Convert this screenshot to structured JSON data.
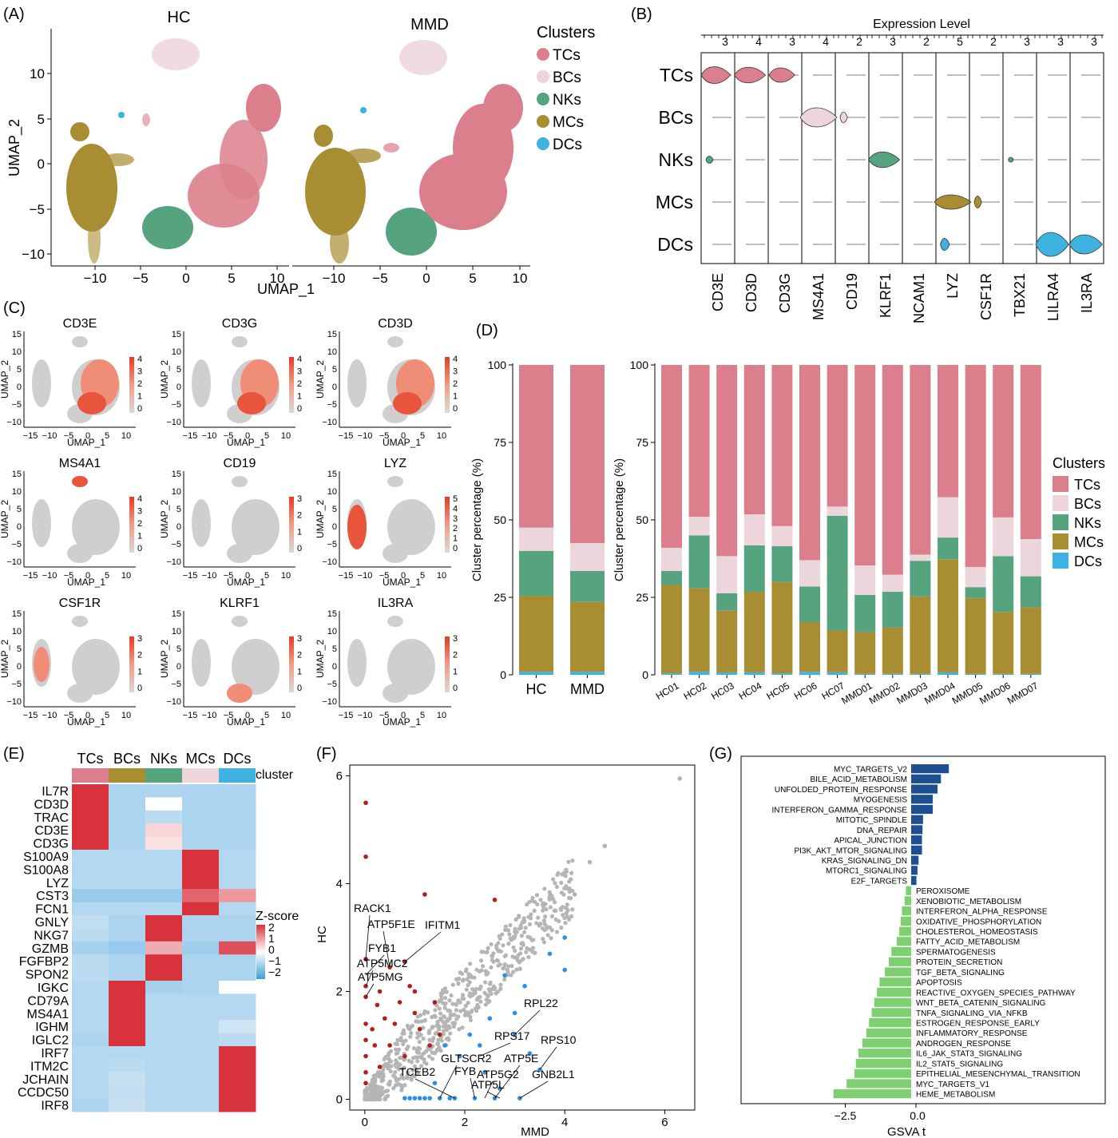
{
  "panel_labels": [
    "(A)",
    "(B)",
    "(C)",
    "(D)",
    "(E)",
    "(F)",
    "(G)"
  ],
  "colors": {
    "TCs": "#dc7f8c",
    "BCs": "#ecd5db",
    "NKs": "#55a37f",
    "MCs": "#a88d33",
    "DCs": "#3fb3e0"
  },
  "panelA": {
    "titles": [
      "HC",
      "MMD"
    ],
    "xlabel": "UMAP_1",
    "ylabel": "UMAP_2",
    "x_ticks": [
      "−10",
      "−5",
      "0",
      "5",
      "10"
    ],
    "y_ticks": [
      "10",
      "5",
      "0",
      "−5",
      "−10"
    ],
    "legend_title": "Clusters",
    "legend": [
      "TCs",
      "BCs",
      "NKs",
      "MCs",
      "DCs"
    ]
  },
  "panelB": {
    "title": "Expression Level",
    "rows": [
      "TCs",
      "BCs",
      "NKs",
      "MCs",
      "DCs"
    ],
    "genes": [
      "CD3E",
      "CD3D",
      "CD3G",
      "MS4A1",
      "CD19",
      "KLRF1",
      "NCAM1",
      "LYZ",
      "CSF1R",
      "TBX21",
      "LILRA4",
      "IL3RA"
    ],
    "top_ticks": [
      "3",
      "4",
      "3",
      "4",
      "2",
      "3",
      "2",
      "5",
      "2",
      "3",
      "3",
      "3"
    ]
  },
  "panelC": {
    "xlabel": "UMAP_1",
    "ylabel": "UMAP_2",
    "x_ticks": [
      "−15",
      "−10",
      "−5",
      "0",
      "5",
      "10"
    ],
    "y_ticks": [
      "15",
      "10",
      "5",
      "0",
      "−5",
      "−10"
    ],
    "maps": [
      {
        "gene": "CD3E",
        "scale": [
          "4",
          "3",
          "2",
          "1",
          "0"
        ]
      },
      {
        "gene": "CD3G",
        "scale": [
          "4",
          "3",
          "2",
          "1",
          "0"
        ]
      },
      {
        "gene": "CD3D",
        "scale": [
          "4",
          "3",
          "2",
          "1",
          "0"
        ]
      },
      {
        "gene": "MS4A1",
        "scale": [
          "4",
          "3",
          "2",
          "1",
          "0"
        ]
      },
      {
        "gene": "CD19",
        "scale": [
          "3",
          "2",
          "1",
          "0"
        ]
      },
      {
        "gene": "LYZ",
        "scale": [
          "5",
          "4",
          "3",
          "2",
          "1",
          "0"
        ]
      },
      {
        "gene": "CSF1R",
        "scale": [
          "3",
          "2",
          "1",
          "0"
        ]
      },
      {
        "gene": "KLRF1",
        "scale": [
          "3",
          "2",
          "1",
          "0"
        ]
      },
      {
        "gene": "IL3RA",
        "scale": [
          "3",
          "2",
          "1",
          "0"
        ]
      }
    ]
  },
  "panelE": {
    "columns": [
      "TCs",
      "BCs",
      "NKs",
      "MCs",
      "DCs"
    ],
    "cluster_label": "cluster",
    "genes": [
      "IL7R",
      "CD3D",
      "TRAC",
      "CD3E",
      "CD3G",
      "S100A9",
      "S100A8",
      "LYZ",
      "CST3",
      "FCN1",
      "GNLY",
      "NKG7",
      "GZMB",
      "FGFBP2",
      "SPON2",
      "IGKC",
      "CD79A",
      "MS4A1",
      "IGHM",
      "IGLC2",
      "IRF7",
      "ITM2C",
      "JCHAIN",
      "CCDC50",
      "IRF8"
    ],
    "z_values": [
      [
        2,
        -0.6,
        -0.6,
        -0.6,
        -0.6
      ],
      [
        2,
        -0.6,
        0.0,
        -0.6,
        -0.6
      ],
      [
        2,
        -0.6,
        -0.4,
        -0.6,
        -0.6
      ],
      [
        2,
        -0.6,
        0.4,
        -0.6,
        -0.6
      ],
      [
        2,
        -0.6,
        0.3,
        -0.6,
        -0.6
      ],
      [
        -0.5,
        -0.5,
        -0.5,
        2,
        -0.5
      ],
      [
        -0.5,
        -0.5,
        -0.5,
        2,
        -0.5
      ],
      [
        -0.5,
        -0.5,
        -0.5,
        2,
        -0.5
      ],
      [
        -0.9,
        -0.9,
        -0.9,
        1.5,
        1.0
      ],
      [
        -0.5,
        -0.5,
        -0.5,
        2,
        -0.5
      ],
      [
        -0.3,
        -0.6,
        2,
        -0.6,
        -0.6
      ],
      [
        -0.4,
        -0.6,
        2,
        -0.6,
        -0.6
      ],
      [
        -0.7,
        -0.9,
        0.8,
        -0.8,
        1.7
      ],
      [
        -0.4,
        -0.6,
        2,
        -0.6,
        -0.6
      ],
      [
        -0.4,
        -0.6,
        2,
        -0.6,
        -0.6
      ],
      [
        -0.5,
        2,
        -0.7,
        -0.6,
        0.0
      ],
      [
        -0.5,
        2,
        -0.5,
        -0.5,
        -0.5
      ],
      [
        -0.5,
        2,
        -0.5,
        -0.5,
        -0.5
      ],
      [
        -0.5,
        2,
        -0.5,
        -0.5,
        -0.1
      ],
      [
        -0.6,
        2,
        -0.5,
        -0.5,
        -0.4
      ],
      [
        -0.5,
        -0.5,
        -0.5,
        -0.5,
        2
      ],
      [
        -0.5,
        -0.4,
        -0.5,
        -0.5,
        2
      ],
      [
        -0.5,
        -0.2,
        -0.5,
        -0.5,
        2
      ],
      [
        -0.5,
        -0.3,
        -0.5,
        -0.5,
        2
      ],
      [
        -0.6,
        -0.2,
        -0.5,
        -0.5,
        2
      ]
    ],
    "legend_title": "Z-score",
    "legend_ticks": [
      "2",
      "1",
      "0",
      "−1",
      "−2"
    ]
  },
  "chart_data": [
    {
      "type": "bar",
      "stacked": true,
      "categories": [
        "HC",
        "MMD"
      ],
      "ylabel": "Cluster percentage (%)",
      "ylim": [
        0,
        100
      ],
      "y_ticks": [
        "0",
        "25",
        "50",
        "75",
        "100"
      ],
      "series": [
        {
          "name": "DCs",
          "values": [
            1,
            1
          ]
        },
        {
          "name": "MCs",
          "values": [
            24.5,
            22.5
          ]
        },
        {
          "name": "NKs",
          "values": [
            14.5,
            10
          ]
        },
        {
          "name": "BCs",
          "values": [
            7.5,
            9
          ]
        },
        {
          "name": "TCs",
          "values": [
            52.5,
            57.5
          ]
        }
      ]
    },
    {
      "type": "bar",
      "stacked": true,
      "categories": [
        "HC01",
        "HC02",
        "HC03",
        "HC04",
        "HC05",
        "HC06",
        "HC07",
        "MMD01",
        "MMD02",
        "MMD03",
        "MMD04",
        "MMD05",
        "MMD06",
        "MMD07"
      ],
      "ylabel": "Cluster percentage (%)",
      "ylim": [
        0,
        100
      ],
      "y_ticks": [
        "0",
        "25",
        "50",
        "75",
        "100"
      ],
      "legend_title": "Clusters",
      "legend": [
        "TCs",
        "BCs",
        "NKs",
        "MCs",
        "DCs"
      ],
      "series": [
        {
          "name": "DCs",
          "values": [
            0.5,
            1,
            0.8,
            0.8,
            0.5,
            1,
            0.8,
            0.3,
            0.3,
            0.3,
            0.8,
            0.3,
            0.3,
            0.3
          ]
        },
        {
          "name": "MCs",
          "values": [
            28.5,
            27,
            20,
            26,
            29.5,
            16,
            13.5,
            13.5,
            15,
            25,
            36.5,
            24.5,
            20,
            21.5
          ]
        },
        {
          "name": "NKs",
          "values": [
            4.5,
            17,
            5.5,
            15,
            11.5,
            11.5,
            37,
            12,
            11.5,
            11.5,
            7,
            3.5,
            18,
            10
          ]
        },
        {
          "name": "BCs",
          "values": [
            7.5,
            6,
            12,
            10,
            6.5,
            8.5,
            3,
            9.5,
            5.5,
            2,
            13,
            6.5,
            12.5,
            12
          ]
        },
        {
          "name": "TCs",
          "values": [
            59,
            49,
            61.7,
            48.2,
            52,
            63,
            45.7,
            64.7,
            67.7,
            61.2,
            42.7,
            65.2,
            49.2,
            56.2
          ]
        }
      ]
    },
    {
      "type": "scatter",
      "xlabel": "MMD",
      "ylabel": "HC",
      "xlim": [
        -0.3,
        6.6
      ],
      "ylim": [
        -0.2,
        6.2
      ],
      "x_ticks": [
        0,
        2,
        4,
        6
      ],
      "y_ticks": [
        0,
        2,
        4,
        6
      ],
      "series": [
        {
          "color": "#b01e1e",
          "points": [
            [
              0.02,
              5.5
            ],
            [
              0.02,
              4.5
            ],
            [
              1.2,
              3.8
            ],
            [
              2.6,
              3.7
            ],
            [
              0.02,
              2.6
            ],
            [
              0.5,
              2.45
            ],
            [
              0.8,
              2.55
            ],
            [
              0.02,
              2.1
            ],
            [
              0.02,
              1.9
            ],
            [
              0.3,
              2.0
            ],
            [
              0.4,
              1.5
            ],
            [
              0.6,
              1.4
            ],
            [
              0.7,
              1.8
            ],
            [
              0.9,
              2.1
            ],
            [
              1.0,
              1.6
            ],
            [
              1.1,
              1.3
            ],
            [
              0.15,
              1.3
            ],
            [
              0.2,
              1.0
            ],
            [
              0.5,
              1.0
            ],
            [
              0.3,
              0.6
            ],
            [
              0.02,
              1.4
            ],
            [
              0.02,
              1.1
            ],
            [
              0.02,
              0.8
            ],
            [
              0.02,
              0.5
            ],
            [
              0.02,
              0.3
            ],
            [
              1.3,
              1.0
            ],
            [
              1.5,
              1.2
            ],
            [
              0.8,
              0.8
            ],
            [
              1.0,
              2.0
            ],
            [
              0.25,
              1.75
            ],
            [
              1.4,
              1.8
            ]
          ]
        },
        {
          "color": "#2d8ee6",
          "points": [
            [
              3.0,
              1.2
            ],
            [
              3.5,
              0.55
            ],
            [
              3.3,
              0.85
            ],
            [
              4.0,
              2.4
            ],
            [
              3.2,
              2.1
            ],
            [
              2.8,
              2.3
            ],
            [
              2.5,
              1.5
            ],
            [
              2.3,
              1.0
            ],
            [
              4.0,
              3.0
            ],
            [
              3.7,
              2.7
            ],
            [
              3.0,
              1.6
            ],
            [
              2.1,
              1.2
            ],
            [
              2.4,
              0.5
            ],
            [
              2.7,
              0.2
            ],
            [
              1.9,
              0.8
            ],
            [
              1.6,
              1.0
            ],
            [
              1.4,
              0.3
            ],
            [
              3.1,
              0.02
            ],
            [
              2.6,
              0.02
            ],
            [
              2.2,
              0.02
            ],
            [
              1.8,
              0.02
            ],
            [
              1.5,
              0.02
            ],
            [
              0.8,
              0.02
            ],
            [
              1.0,
              0.02
            ],
            [
              1.2,
              0.02
            ],
            [
              1.3,
              0.02
            ],
            [
              1.7,
              0.02
            ],
            [
              0.9,
              0.02
            ],
            [
              1.1,
              0.02
            ]
          ]
        },
        {
          "color": "#b5b5b5",
          "points": [
            [
              6.3,
              5.95
            ],
            [
              4.8,
              4.7
            ],
            [
              4.5,
              4.4
            ],
            [
              4.2,
              3.8
            ],
            [
              3.8,
              3.5
            ],
            [
              3.3,
              3.0
            ],
            [
              2.8,
              2.5
            ],
            [
              2.2,
              2.0
            ],
            [
              1.7,
              1.5
            ],
            [
              1.3,
              1.1
            ]
          ]
        }
      ],
      "labels": [
        "RACK1",
        "ATP5F1E",
        "IFITM1",
        "FYB1",
        "ATP5MC2",
        "ATP5MG",
        "RPL22",
        "RPS17",
        "RPS10",
        "GLTSCR2",
        "ATP5E",
        "TCEB2",
        "FYB",
        "ATP5G2",
        "ATP5L",
        "GNB2L1"
      ]
    },
    {
      "type": "bar",
      "orientation": "horizontal",
      "xlabel": "GSVA t",
      "x_ticks": [
        "−2.5",
        "0.0"
      ],
      "categories": [
        "MYC_TARGETS_V2",
        "BILE_ACID_METABOLISM",
        "UNFOLDED_PROTEIN_RESPONSE",
        "MYOGENESIS",
        "INTERFERON_GAMMA_RESPONSE",
        "MITOTIC_SPINDLE",
        "DNA_REPAIR",
        "APICAL_JUNCTION",
        "PI3K_AKT_MTOR_SIGNALING",
        "KRAS_SIGNALING_DN",
        "MTORC1_SIGNALING",
        "E2F_TARGETS",
        "PEROXISOME",
        "XENOBIOTIC_METABOLISM",
        "INTERFERON_ALPHA_RESPONSE",
        "OXIDATIVE_PHOSPHORYLATION",
        "CHOLESTEROL_HOMEOSTASIS",
        "FATTY_ACID_METABOLISM",
        "SPERMATOGENESIS",
        "PROTEIN_SECRETION",
        "TGF_BETA_SIGNALING",
        "APOPTOSIS",
        "REACTIVE_OXYGEN_SPECIES_PATHWAY",
        "WNT_BETA_CATENIN_SIGNALING",
        "TNFA_SIGNALING_VIA_NFKB",
        "ESTROGEN_RESPONSE_EARLY",
        "INFLAMMATORY_RESPONSE",
        "ANDROGEN_RESPONSE",
        "IL6_JAK_STAT3_SIGNALING",
        "IL2_STAT5_SIGNALING",
        "EPITHELIAL_MESENCHYMAL_TRANSITION",
        "MYC_TARGETS_V1",
        "HEME_METABOLISM"
      ],
      "values": [
        1.43,
        1.13,
        1.0,
        0.82,
        0.82,
        0.45,
        0.43,
        0.41,
        0.41,
        0.28,
        0.24,
        0.2,
        -0.2,
        -0.25,
        -0.35,
        -0.4,
        -0.45,
        -0.55,
        -0.75,
        -0.85,
        -1.0,
        -1.2,
        -1.3,
        -1.4,
        -1.5,
        -1.6,
        -1.7,
        -1.85,
        -2.0,
        -2.1,
        -2.15,
        -2.45,
        -2.95
      ]
    }
  ]
}
